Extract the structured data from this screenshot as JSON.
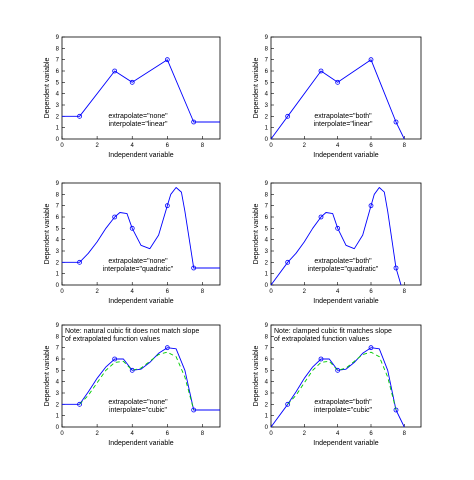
{
  "colors": {
    "curve": "#0000ff",
    "marker": "#0000ff",
    "dashed_fit": "#00cc00",
    "axes": "#000000",
    "background": "#ffffff"
  },
  "chart_data": [
    {
      "type": "line",
      "xlabel": "Independent variable",
      "ylabel": "Dependent variable",
      "xlim": [
        0,
        9
      ],
      "ylim": [
        0,
        9
      ],
      "xticks": [
        0,
        2,
        4,
        6,
        8
      ],
      "yticks": [
        0,
        1,
        2,
        3,
        4,
        5,
        6,
        7,
        8,
        9
      ],
      "annotation": [
        "extrapolate=\"none\"",
        "interpolate=\"linear\""
      ],
      "note": [],
      "markers": {
        "x": [
          1,
          3,
          4,
          6,
          7.5
        ],
        "y": [
          2,
          6,
          5,
          7,
          1.5
        ]
      },
      "series": [
        {
          "x": [
            0,
            1,
            3,
            4,
            6,
            7.5,
            9
          ],
          "y": [
            2,
            2,
            6,
            5,
            7,
            1.5,
            1.5
          ],
          "style": "solid"
        }
      ]
    },
    {
      "type": "line",
      "xlabel": "Independent variable",
      "ylabel": "Dependent variable",
      "xlim": [
        0,
        9
      ],
      "ylim": [
        0,
        9
      ],
      "xticks": [
        0,
        2,
        4,
        6,
        8
      ],
      "yticks": [
        0,
        1,
        2,
        3,
        4,
        5,
        6,
        7,
        8,
        9
      ],
      "annotation": [
        "extrapolate=\"both\"",
        "interpolate=\"linear\""
      ],
      "note": [],
      "markers": {
        "x": [
          1,
          3,
          4,
          6,
          7.5
        ],
        "y": [
          2,
          6,
          5,
          7,
          1.5
        ]
      },
      "series": [
        {
          "x": [
            0,
            1,
            3,
            4,
            6,
            7.5,
            8
          ],
          "y": [
            0,
            2,
            6,
            5,
            7,
            1.5,
            0
          ],
          "style": "solid"
        }
      ]
    },
    {
      "type": "line",
      "xlabel": "Independent variable",
      "ylabel": "Dependent variable",
      "xlim": [
        0,
        9
      ],
      "ylim": [
        0,
        9
      ],
      "xticks": [
        0,
        2,
        4,
        6,
        8
      ],
      "yticks": [
        0,
        1,
        2,
        3,
        4,
        5,
        6,
        7,
        8,
        9
      ],
      "annotation": [
        "extrapolate=\"none\"",
        "interpolate=\"quadratic\""
      ],
      "note": [],
      "markers": {
        "x": [
          1,
          3,
          4,
          6,
          7.5
        ],
        "y": [
          2,
          6,
          5,
          7,
          1.5
        ]
      },
      "series": [
        {
          "x": [
            0,
            1,
            1.5,
            2,
            2.5,
            3,
            3.3,
            3.7,
            4,
            4.5,
            5,
            5.5,
            6,
            6.2,
            6.5,
            6.8,
            7,
            7.3,
            7.5,
            9
          ],
          "y": [
            2,
            2,
            2.8,
            3.8,
            5.0,
            6,
            6.4,
            6.3,
            5,
            3.5,
            3.2,
            4.4,
            7,
            8.0,
            8.6,
            8.2,
            6.5,
            3.5,
            1.5,
            1.5
          ],
          "style": "solid"
        }
      ]
    },
    {
      "type": "line",
      "xlabel": "Independent variable",
      "ylabel": "Dependent variable",
      "xlim": [
        0,
        9
      ],
      "ylim": [
        0,
        9
      ],
      "xticks": [
        0,
        2,
        4,
        6,
        8
      ],
      "yticks": [
        0,
        1,
        2,
        3,
        4,
        5,
        6,
        7,
        8,
        9
      ],
      "annotation": [
        "extrapolate=\"both\"",
        "interpolate=\"quadratic\""
      ],
      "note": [],
      "markers": {
        "x": [
          1,
          3,
          4,
          6,
          7.5
        ],
        "y": [
          2,
          6,
          5,
          7,
          1.5
        ]
      },
      "series": [
        {
          "x": [
            0,
            1,
            1.5,
            2,
            2.5,
            3,
            3.3,
            3.7,
            4,
            4.5,
            5,
            5.5,
            6,
            6.2,
            6.5,
            6.8,
            7,
            7.3,
            7.5,
            7.8
          ],
          "y": [
            0,
            2,
            2.8,
            3.8,
            5.0,
            6,
            6.4,
            6.3,
            5,
            3.5,
            3.2,
            4.4,
            7,
            8.0,
            8.6,
            8.2,
            6.5,
            3.5,
            1.5,
            0
          ],
          "style": "solid"
        }
      ]
    },
    {
      "type": "line",
      "xlabel": "Independent variable",
      "ylabel": "Dependent variable",
      "xlim": [
        0,
        9
      ],
      "ylim": [
        0,
        9
      ],
      "xticks": [
        0,
        2,
        4,
        6,
        8
      ],
      "yticks": [
        0,
        1,
        2,
        3,
        4,
        5,
        6,
        7,
        8,
        9
      ],
      "annotation": [
        "extrapolate=\"none\"",
        "interpolate=\"cubic\""
      ],
      "note": [
        "Note: natural cubic fit does not match slope",
        "of extrapolated function values"
      ],
      "markers": {
        "x": [
          1,
          3,
          4,
          6,
          7.5
        ],
        "y": [
          2,
          6,
          5,
          7,
          1.5
        ]
      },
      "series": [
        {
          "x": [
            0,
            1,
            1.5,
            2,
            2.5,
            3,
            3.5,
            4,
            4.5,
            5,
            5.5,
            6,
            6.5,
            7,
            7.5,
            9
          ],
          "y": [
            2,
            2,
            3.1,
            4.3,
            5.3,
            6,
            6.0,
            5,
            5.1,
            5.7,
            6.5,
            7,
            6.9,
            5.0,
            1.5,
            1.5
          ],
          "style": "solid"
        },
        {
          "x": [
            1,
            1.5,
            2,
            2.5,
            3,
            3.5,
            4,
            4.5,
            5,
            5.5,
            6,
            6.5,
            7,
            7.5
          ],
          "y": [
            2,
            2.8,
            3.9,
            5.0,
            5.7,
            5.8,
            5,
            5.2,
            5.8,
            6.4,
            6.6,
            6.2,
            4.4,
            1.5
          ],
          "style": "dashed"
        }
      ]
    },
    {
      "type": "line",
      "xlabel": "Independent variable",
      "ylabel": "Dependent variable",
      "xlim": [
        0,
        9
      ],
      "ylim": [
        0,
        9
      ],
      "xticks": [
        0,
        2,
        4,
        6,
        8
      ],
      "yticks": [
        0,
        1,
        2,
        3,
        4,
        5,
        6,
        7,
        8,
        9
      ],
      "annotation": [
        "extrapolate=\"both\"",
        "interpolate=\"cubic\""
      ],
      "note": [
        "Note: clamped cubic fit matches slope",
        "of extrapolated function values"
      ],
      "markers": {
        "x": [
          1,
          3,
          4,
          6,
          7.5
        ],
        "y": [
          2,
          6,
          5,
          7,
          1.5
        ]
      },
      "series": [
        {
          "x": [
            0,
            1,
            1.5,
            2,
            2.5,
            3,
            3.5,
            4,
            4.5,
            5,
            5.5,
            6,
            6.5,
            7,
            7.5,
            8
          ],
          "y": [
            0,
            2,
            3.1,
            4.3,
            5.3,
            6,
            6.0,
            5,
            5.1,
            5.7,
            6.5,
            7,
            6.9,
            5.0,
            1.5,
            0
          ],
          "style": "solid"
        },
        {
          "x": [
            1,
            1.5,
            2,
            2.5,
            3,
            3.5,
            4,
            4.5,
            5,
            5.5,
            6,
            6.5,
            7,
            7.5
          ],
          "y": [
            2,
            2.8,
            3.9,
            5.0,
            5.7,
            5.8,
            5,
            5.2,
            5.8,
            6.4,
            6.6,
            6.2,
            4.4,
            1.5
          ],
          "style": "dashed"
        }
      ]
    }
  ]
}
